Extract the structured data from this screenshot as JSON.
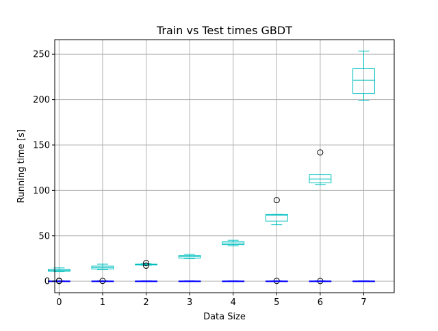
{
  "chart_data": {
    "type": "box",
    "title": "Train vs Test times GBDT",
    "xlabel": "Data Size",
    "ylabel": "Running time [s]",
    "categories": [
      "0",
      "1",
      "2",
      "3",
      "4",
      "5",
      "6",
      "7"
    ],
    "y_ticks": [
      0,
      50,
      100,
      150,
      200,
      250
    ],
    "ylim": [
      -12.7,
      266
    ],
    "grid": true,
    "series": [
      {
        "color": "#00bfbf",
        "boxes": [
          {
            "whislo": 10.4,
            "q1": 10.9,
            "med": 12.0,
            "q3": 13.1,
            "whishi": 14.6,
            "fliers": []
          },
          {
            "whislo": 12.7,
            "q1": 13.5,
            "med": 14.8,
            "q3": 16.6,
            "whishi": 18.8,
            "fliers": []
          },
          {
            "whislo": 17.5,
            "q1": 17.8,
            "med": 18.3,
            "q3": 18.8,
            "whishi": 19.2,
            "fliers": [
              17.1,
              20.0
            ]
          },
          {
            "whislo": 24.9,
            "q1": 25.5,
            "med": 26.8,
            "q3": 28.2,
            "whishi": 29.5,
            "fliers": []
          },
          {
            "whislo": 38.8,
            "q1": 40.3,
            "med": 42.0,
            "q3": 43.3,
            "whishi": 45.1,
            "fliers": []
          },
          {
            "whislo": 62.2,
            "q1": 66.2,
            "med": 72.3,
            "q3": 73.6,
            "whishi": 73.6,
            "fliers": [
              89.3,
              0.3
            ]
          },
          {
            "whislo": 106.4,
            "q1": 108.4,
            "med": 112.4,
            "q3": 117.2,
            "whishi": 117.2,
            "fliers": [
              141.8,
              0.2
            ]
          },
          {
            "whislo": 199.3,
            "q1": 206.8,
            "med": 221.4,
            "q3": 234.0,
            "whishi": 253.3,
            "fliers": []
          }
        ]
      },
      {
        "color": "#0000ff",
        "boxes": [
          {
            "whislo": 0.1,
            "q1": 0.1,
            "med": 0.2,
            "q3": 0.2,
            "whishi": 0.3,
            "fliers": [
              0.2,
              0.5
            ]
          },
          {
            "whislo": 0.1,
            "q1": 0.1,
            "med": 0.2,
            "q3": 0.2,
            "whishi": 0.3,
            "fliers": [
              0.3
            ]
          },
          {
            "whislo": 0.1,
            "q1": 0.1,
            "med": 0.2,
            "q3": 0.2,
            "whishi": 0.3,
            "fliers": []
          },
          {
            "whislo": 0.1,
            "q1": 0.1,
            "med": 0.2,
            "q3": 0.2,
            "whishi": 0.3,
            "fliers": []
          },
          {
            "whislo": 0.1,
            "q1": 0.1,
            "med": 0.2,
            "q3": 0.2,
            "whishi": 0.3,
            "fliers": []
          },
          {
            "whislo": 0.1,
            "q1": 0.1,
            "med": 0.2,
            "q3": 0.2,
            "whishi": 0.3,
            "fliers": []
          },
          {
            "whislo": 0.1,
            "q1": 0.1,
            "med": 0.2,
            "q3": 0.2,
            "whishi": 0.3,
            "fliers": []
          },
          {
            "whislo": 0.1,
            "q1": 0.1,
            "med": 0.2,
            "q3": 0.2,
            "whishi": 0.3,
            "fliers": []
          }
        ]
      }
    ]
  }
}
